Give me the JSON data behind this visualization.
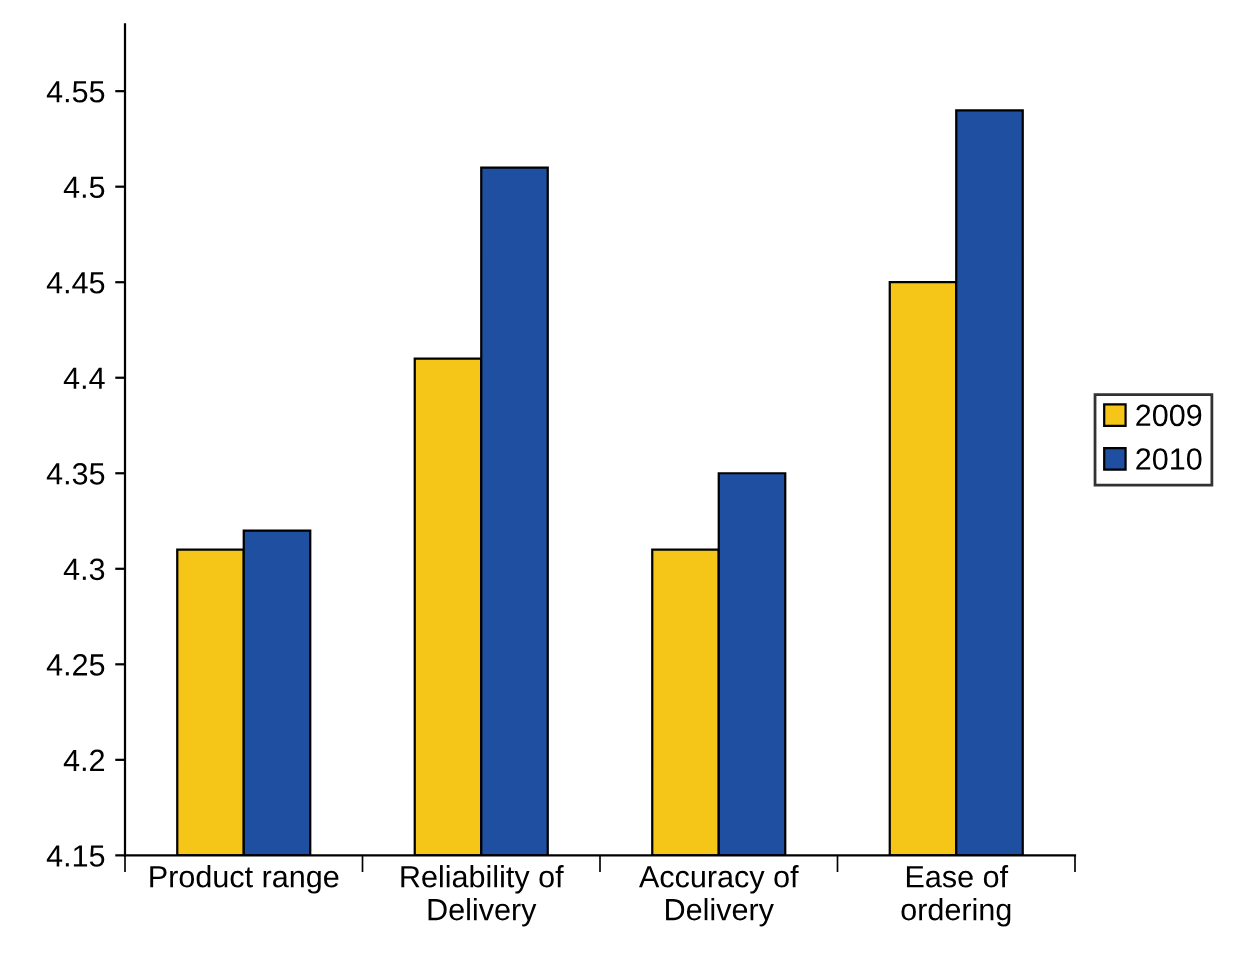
{
  "chart_data": {
    "type": "bar",
    "categories": [
      "Product range",
      "Reliability of\nDelivery",
      "Accuracy of\nDelivery",
      "Ease of\nordering"
    ],
    "series": [
      {
        "name": "2009",
        "color": "#f5c518",
        "values": [
          4.31,
          4.41,
          4.31,
          4.45
        ]
      },
      {
        "name": "2010",
        "color": "#1f4fa0",
        "values": [
          4.32,
          4.51,
          4.35,
          4.54
        ]
      }
    ],
    "ylim": [
      4.15,
      4.585
    ],
    "yticks": [
      4.15,
      4.2,
      4.25,
      4.3,
      4.35,
      4.4,
      4.45,
      4.5,
      4.55
    ],
    "grid": false,
    "legend": "right"
  }
}
